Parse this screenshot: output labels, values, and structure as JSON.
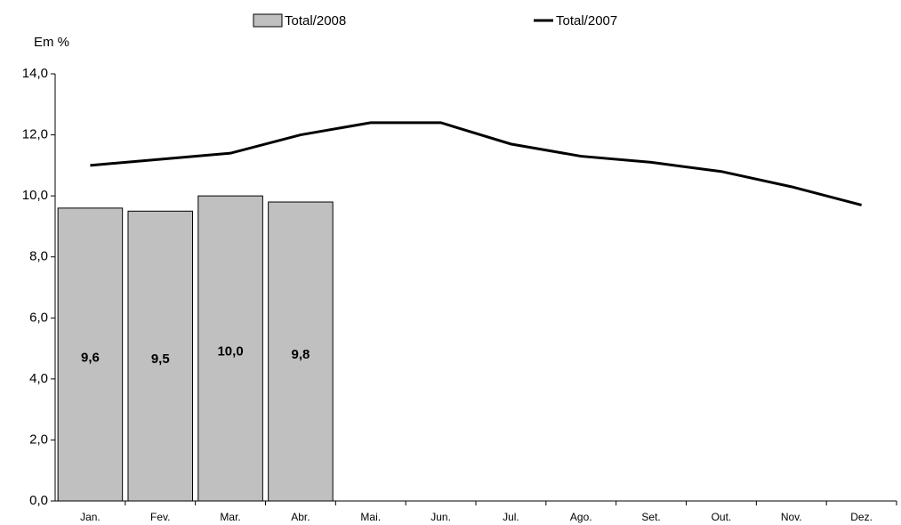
{
  "chart_data": {
    "type": "combo",
    "y_label": "Em %",
    "categories": [
      "Jan.",
      "Fev.",
      "Mar.",
      "Abr.",
      "Mai.",
      "Jun.",
      "Jul.",
      "Ago.",
      "Set.",
      "Out.",
      "Nov.",
      "Dez."
    ],
    "series": [
      {
        "name": "Total/2008",
        "type": "bar",
        "color": "#c0c0c0",
        "values": [
          9.6,
          9.5,
          10.0,
          9.8,
          null,
          null,
          null,
          null,
          null,
          null,
          null,
          null
        ],
        "value_labels": [
          "9,6",
          "9,5",
          "10,0",
          "9,8",
          null,
          null,
          null,
          null,
          null,
          null,
          null,
          null
        ]
      },
      {
        "name": "Total/2007",
        "type": "line",
        "color": "#000000",
        "values": [
          11.0,
          11.2,
          11.4,
          12.0,
          12.4,
          12.4,
          11.7,
          11.3,
          11.1,
          10.8,
          10.3,
          9.7
        ]
      }
    ],
    "ylim": [
      0,
      14
    ],
    "yticks": [
      {
        "value": 0,
        "label": "0,0"
      },
      {
        "value": 2,
        "label": "2,0"
      },
      {
        "value": 4,
        "label": "4,0"
      },
      {
        "value": 6,
        "label": "6,0"
      },
      {
        "value": 8,
        "label": "8,0"
      },
      {
        "value": 10,
        "label": "10,0"
      },
      {
        "value": 12,
        "label": "12,0"
      },
      {
        "value": 14,
        "label": "14,0"
      }
    ],
    "grid": false
  }
}
